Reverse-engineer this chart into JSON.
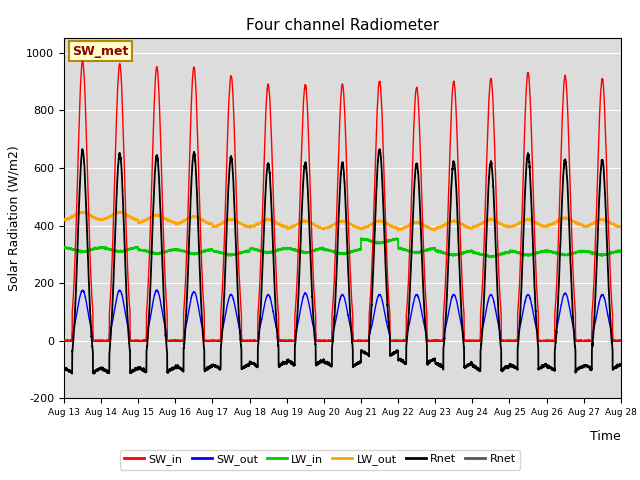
{
  "title": "Four channel Radiometer",
  "ylabel": "Solar Radiation (W/m2)",
  "xlabel": "Time",
  "annotation": "SW_met",
  "ylim": [
    -200,
    1050
  ],
  "xlim": [
    0,
    15
  ],
  "x_labels": [
    "Aug 13",
    "Aug 14",
    "Aug 15",
    "Aug 16",
    "Aug 17",
    "Aug 18",
    "Aug 19",
    "Aug 20",
    "Aug 21",
    "Aug 22",
    "Aug 23",
    "Aug 24",
    "Aug 25",
    "Aug 26",
    "Aug 27",
    "Aug 28"
  ],
  "yticks": [
    -200,
    0,
    200,
    400,
    600,
    800,
    1000
  ],
  "colors": {
    "SW_in": "#ff0000",
    "SW_out": "#0000ff",
    "LW_in": "#00cc00",
    "LW_out": "#ffa500",
    "Rnet_black": "#000000",
    "Rnet_dark": "#555555"
  },
  "background_color": "#dcdcdc",
  "legend_labels": [
    "SW_in",
    "SW_out",
    "LW_in",
    "LW_out",
    "Rnet",
    "Rnet"
  ],
  "legend_colors": [
    "#ff0000",
    "#0000ff",
    "#00cc00",
    "#ffa500",
    "#000000",
    "#555555"
  ],
  "sw_in_peaks": [
    970,
    960,
    950,
    950,
    920,
    890,
    890,
    890,
    900,
    880,
    900,
    910,
    930,
    920,
    910
  ],
  "sw_out_peaks": [
    175,
    175,
    175,
    170,
    160,
    160,
    165,
    160,
    160,
    160,
    160,
    160,
    160,
    165,
    160
  ],
  "lw_in_base_vals": [
    325,
    325,
    318,
    318,
    313,
    322,
    322,
    318,
    355,
    322,
    313,
    308,
    313,
    313,
    313
  ],
  "lw_out_base_vals": [
    418,
    418,
    408,
    403,
    393,
    393,
    388,
    388,
    388,
    383,
    388,
    393,
    393,
    398,
    393
  ]
}
